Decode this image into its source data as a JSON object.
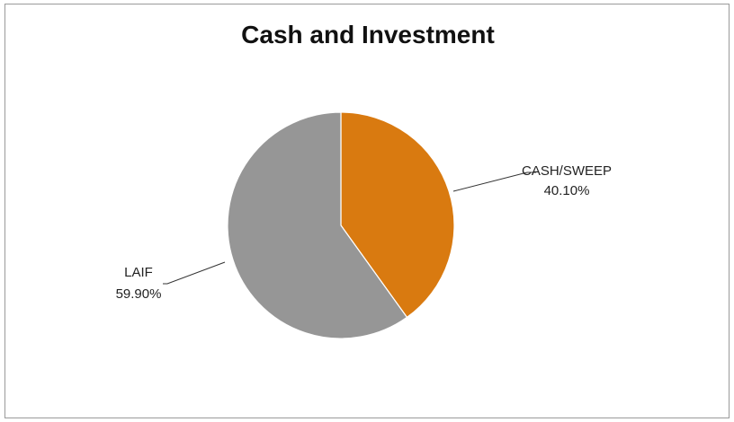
{
  "chart_data": {
    "type": "pie",
    "title": "Cash and Investment",
    "slices": [
      {
        "label": "CASH/SWEEP",
        "value": 40.1,
        "value_label": "40.10%",
        "color": "#d97a10"
      },
      {
        "label": "LAIF",
        "value": 59.9,
        "value_label": "59.90%",
        "color": "#969696"
      }
    ],
    "start_angle": "12 o'clock",
    "direction": "clockwise",
    "legend": "none"
  }
}
